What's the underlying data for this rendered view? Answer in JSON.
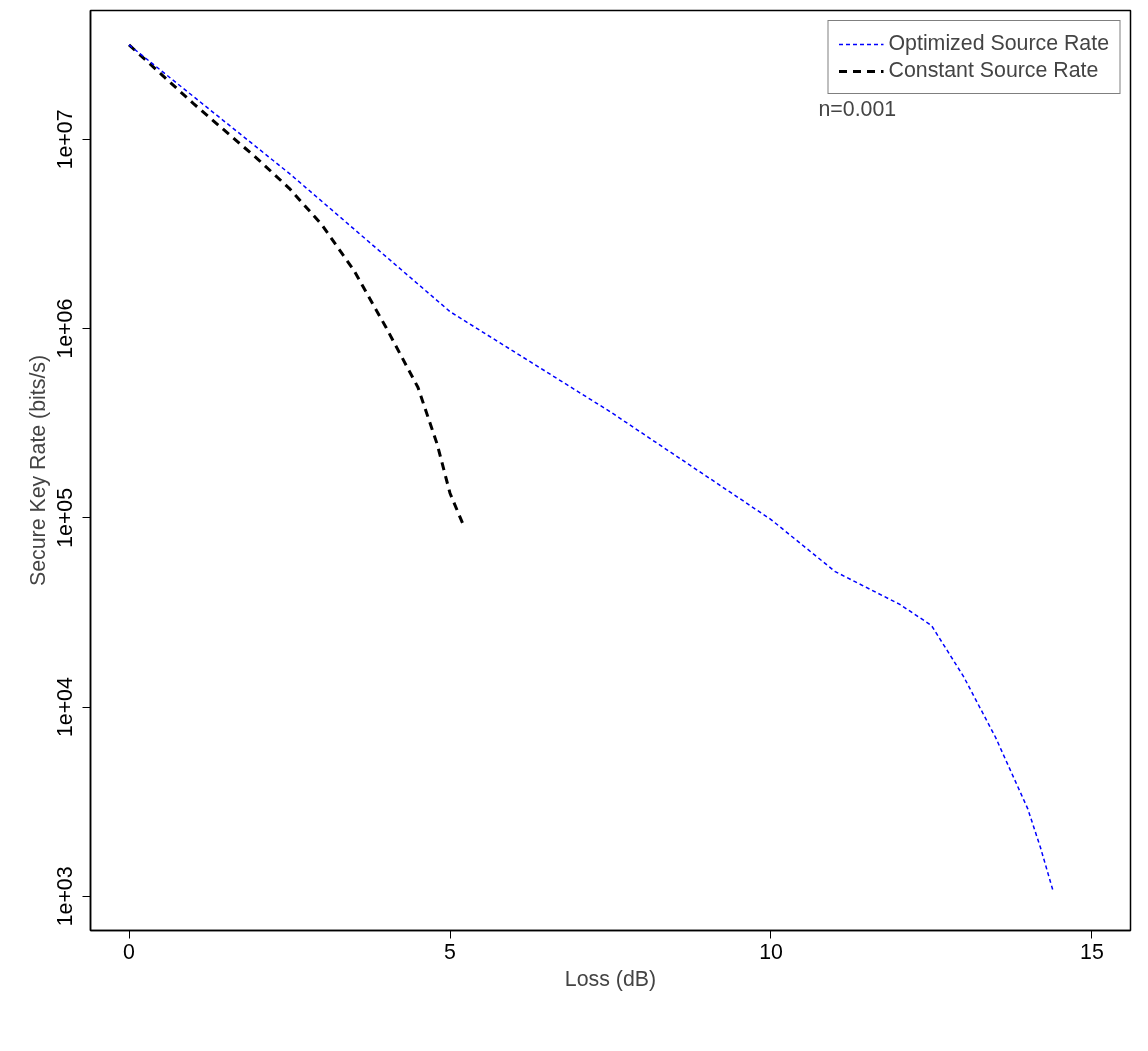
{
  "chart_data": {
    "type": "line",
    "xlabel": "Loss (dB)",
    "ylabel": "Secure Key Rate (bits/s)",
    "log": "y",
    "xlim": [
      -0.6,
      15.6
    ],
    "ylim": [
      660,
      48000000
    ],
    "xticks": [
      0,
      5,
      10,
      15
    ],
    "yticks": [
      {
        "value": 1000,
        "label": "1e+03"
      },
      {
        "value": 10000,
        "label": "1e+04"
      },
      {
        "value": 100000,
        "label": "1e+05"
      },
      {
        "value": 1000000,
        "label": "1e+06"
      },
      {
        "value": 10000000,
        "label": "1e+07"
      }
    ],
    "grid": false,
    "legend": "top right",
    "annotations": [
      "n=0.001"
    ],
    "series": [
      {
        "name": "Optimized Source Rate",
        "color": "#0000ff",
        "line_style": "dotted",
        "x": [
          0,
          2.5,
          5,
          7.5,
          10,
          11,
          12,
          12.5,
          13,
          13.5,
          14,
          14.2,
          14.4
        ],
        "values": [
          31600000,
          6600000,
          1230000,
          363000,
          98000,
          52000,
          35000,
          27000,
          14500,
          6900,
          2900,
          1800,
          1050
        ]
      },
      {
        "name": "Constant Source Rate",
        "color": "#000000",
        "line_style": "dashed",
        "x": [
          0,
          1,
          2,
          2.5,
          3,
          3.5,
          4,
          4.5,
          4.8,
          5,
          5.2
        ],
        "values": [
          31600000,
          15500000,
          7900000,
          5500000,
          3550000,
          2040000,
          1020000,
          490000,
          245000,
          135000,
          93000
        ]
      }
    ]
  }
}
